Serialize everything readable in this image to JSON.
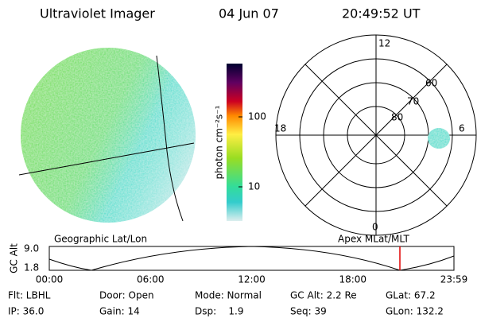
{
  "header": {
    "title": "Ultraviolet Imager",
    "date": "04 Jun 07",
    "time": "20:49:52 UT"
  },
  "colorbar": {
    "label": "photon cm⁻²s⁻¹",
    "ticks": [
      10,
      100
    ]
  },
  "polar": {
    "hours": {
      "top": "12",
      "left": "18",
      "right": "6",
      "bottom": "0"
    },
    "latitudes": [
      "80",
      "70",
      "60"
    ]
  },
  "timeline": {
    "left_label": "Geographic Lat/Lon",
    "right_label": "Apex MLat/MLT",
    "y_label": "GC Alt",
    "yticks": [
      "9.0",
      "1.8"
    ],
    "xticks": [
      "00:00",
      "06:00",
      "12:00",
      "18:00",
      "23:59"
    ]
  },
  "info": {
    "rows": [
      [
        "Flt: LBHL",
        "Door: Open",
        "Mode: Normal",
        "GC Alt: 2.2 Re",
        "GLat: 67.2"
      ],
      [
        "IP: 36.0",
        "Gain: 14",
        "Dsp:    1.9",
        "Seq: 39",
        "GLon: 132.2"
      ]
    ]
  }
}
